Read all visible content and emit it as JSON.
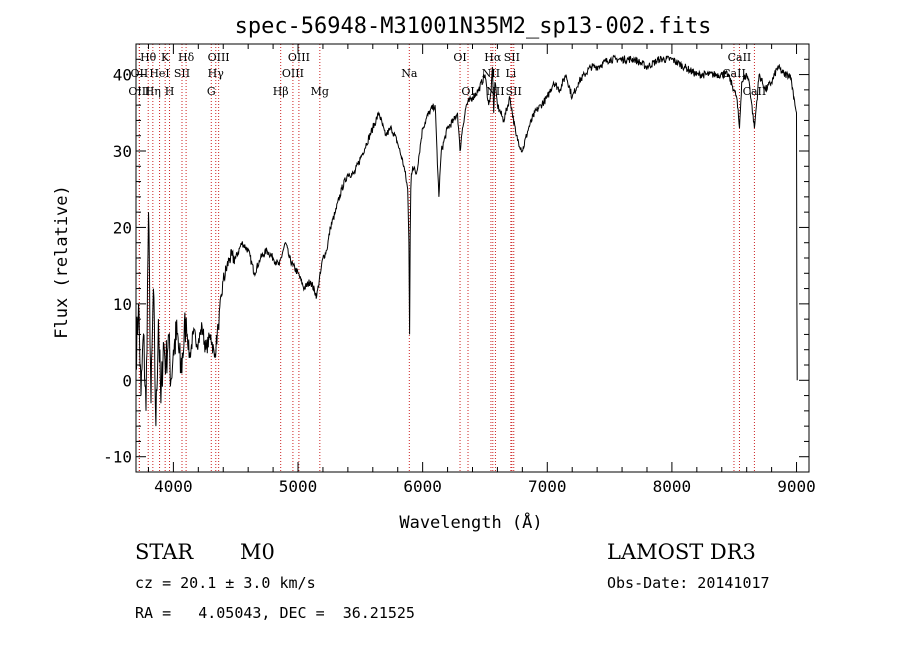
{
  "chart_data": {
    "type": "line",
    "title": "spec-56948-M31001N35M2_sp13-002.fits",
    "xlabel": "Wavelength (Å)",
    "ylabel": "Flux (relative)",
    "xlim": [
      3700,
      9100
    ],
    "ylim": [
      -12,
      44
    ],
    "xticks": [
      4000,
      5000,
      6000,
      7000,
      8000,
      9000
    ],
    "yticks": [
      -10,
      0,
      10,
      20,
      30,
      40
    ],
    "grid": false,
    "series": [
      {
        "line_color": "#000000",
        "x": [
          3700,
          3720,
          3740,
          3760,
          3780,
          3800,
          3820,
          3840,
          3860,
          3880,
          3900,
          3920,
          3940,
          3960,
          3980,
          4000,
          4030,
          4060,
          4100,
          4130,
          4160,
          4200,
          4230,
          4260,
          4300,
          4330,
          4360,
          4400,
          4450,
          4500,
          4550,
          4600,
          4650,
          4700,
          4750,
          4800,
          4850,
          4880,
          4900,
          4930,
          4960,
          5000,
          5050,
          5100,
          5150,
          5180,
          5200,
          5230,
          5260,
          5300,
          5350,
          5400,
          5450,
          5500,
          5550,
          5600,
          5650,
          5700,
          5750,
          5800,
          5850,
          5880,
          5890,
          5895,
          5900,
          5905,
          5910,
          5920,
          5950,
          6000,
          6050,
          6100,
          6130,
          6150,
          6200,
          6250,
          6280,
          6300,
          6320,
          6350,
          6400,
          6450,
          6500,
          6530,
          6550,
          6560,
          6565,
          6570,
          6580,
          6600,
          6650,
          6700,
          6750,
          6800,
          6850,
          6900,
          6950,
          7000,
          7050,
          7100,
          7150,
          7200,
          7250,
          7300,
          7350,
          7400,
          7500,
          7550,
          7600,
          7700,
          7800,
          7900,
          8000,
          8100,
          8200,
          8300,
          8400,
          8450,
          8498,
          8520,
          8542,
          8560,
          8600,
          8620,
          8662,
          8700,
          8750,
          8800,
          8850,
          8900,
          8950,
          8980,
          9000,
          9003,
          9005
        ],
        "y": [
          3,
          10,
          -2,
          6,
          -4,
          22,
          -3,
          12,
          -6,
          8,
          -3,
          5,
          2,
          6,
          0,
          4,
          6,
          1,
          8,
          3,
          6,
          5,
          7,
          4,
          6,
          3,
          7,
          13,
          16,
          16,
          18,
          17,
          14,
          16,
          17,
          16,
          15,
          17,
          18,
          16,
          15,
          14,
          12,
          13,
          11,
          14,
          16,
          17,
          20,
          22,
          25,
          27,
          27,
          29,
          31,
          33,
          35,
          32,
          33,
          31,
          28,
          25,
          18,
          6,
          19,
          25,
          27,
          28,
          27,
          33,
          35,
          36,
          24,
          30,
          33,
          34,
          35,
          30,
          33,
          36,
          37,
          38,
          40,
          36,
          38,
          41,
          38,
          35,
          39,
          36,
          34,
          37,
          32,
          30,
          33,
          35,
          36,
          37,
          39,
          38,
          40,
          37,
          39,
          40,
          41,
          41,
          42,
          42,
          42,
          42,
          41,
          42,
          42,
          41,
          40,
          40,
          40,
          40,
          38,
          37,
          33,
          39,
          40,
          39,
          33,
          40,
          38,
          39,
          41,
          40,
          40,
          37,
          35,
          10,
          0
        ],
        "values_approximate": true
      }
    ],
    "spectral_lines": [
      {
        "label": "Hθ",
        "wavelength": 3798,
        "row": 1
      },
      {
        "label": "OII",
        "wavelength": 3727,
        "row": 2
      },
      {
        "label": "OIII",
        "wavelength": 3727,
        "row": 3
      },
      {
        "label": "HeI",
        "wavelength": 3889,
        "row": 2
      },
      {
        "label": "Hη",
        "wavelength": 3835,
        "row": 3
      },
      {
        "label": "K",
        "wavelength": 3934,
        "row": 1
      },
      {
        "label": "H",
        "wavelength": 3969,
        "row": 3
      },
      {
        "label": "SII",
        "wavelength": 4069,
        "row": 2
      },
      {
        "label": "Hδ",
        "wavelength": 4102,
        "row": 1
      },
      {
        "label": "OIII",
        "wavelength": 4363,
        "row": 1
      },
      {
        "label": "Hγ",
        "wavelength": 4340,
        "row": 2
      },
      {
        "label": "G",
        "wavelength": 4304,
        "row": 3
      },
      {
        "label": "Hβ",
        "wavelength": 4861,
        "row": 3
      },
      {
        "label": "OIII",
        "wavelength": 5007,
        "row": 1
      },
      {
        "label": "OIII",
        "wavelength": 4959,
        "row": 2
      },
      {
        "label": "Mg",
        "wavelength": 5175,
        "row": 3
      },
      {
        "label": "Na",
        "wavelength": 5893,
        "row": 2
      },
      {
        "label": "OI",
        "wavelength": 6300,
        "row": 1
      },
      {
        "label": "OI",
        "wavelength": 6364,
        "row": 3
      },
      {
        "label": "Hα",
        "wavelength": 6563,
        "row": 1
      },
      {
        "label": "SII",
        "wavelength": 6716,
        "row": 1
      },
      {
        "label": "NII",
        "wavelength": 6548,
        "row": 2
      },
      {
        "label": "Li",
        "wavelength": 6708,
        "row": 2
      },
      {
        "label": "NII",
        "wavelength": 6584,
        "row": 3
      },
      {
        "label": "SII",
        "wavelength": 6731,
        "row": 3
      },
      {
        "label": "CaII",
        "wavelength": 8542,
        "row": 1
      },
      {
        "label": "CaII",
        "wavelength": 8498,
        "row": 2
      },
      {
        "label": "CaII",
        "wavelength": 8662,
        "row": 3
      }
    ],
    "line_marker_color": "#cc2222"
  },
  "info": {
    "class": "STAR",
    "subclass": "M0",
    "survey": "LAMOST DR3",
    "cz": "cz = 20.1 ± 3.0 km/s",
    "obs_date": "Obs-Date: 20141017",
    "radec": "RA =   4.05043, DEC =  36.21525"
  }
}
